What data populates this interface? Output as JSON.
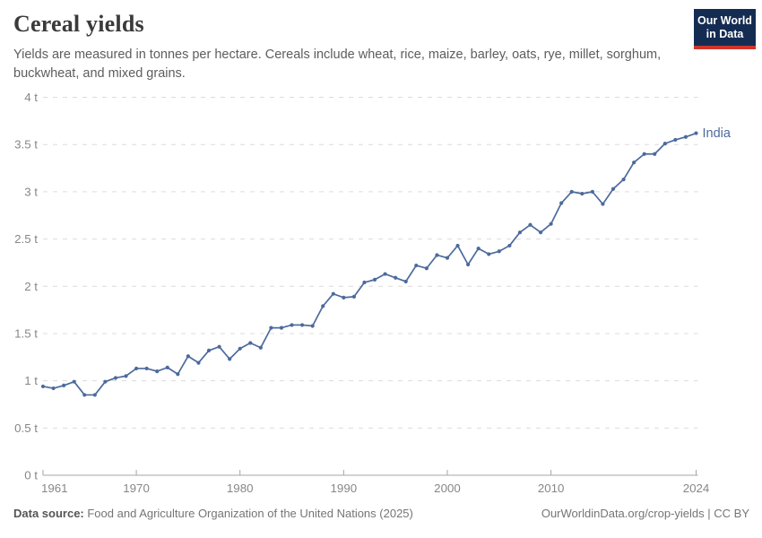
{
  "header": {
    "title": "Cereal yields",
    "subtitle": "Yields are measured in tonnes per hectare. Cereals include wheat, rice, maize, barley, oats, rye, millet, sorghum, buckwheat, and mixed grains.",
    "logo": {
      "line1": "Our World",
      "line2": "in Data"
    }
  },
  "footer": {
    "source_label": "Data source:",
    "source_text": " Food and Agriculture Organization of the United Nations (2025)",
    "attribution": "OurWorldinData.org/crop-yields | CC BY"
  },
  "colors": {
    "series_line": "#4c6a9c",
    "logo_navy": "#152c52",
    "logo_red": "#cf352b",
    "grid": "#dcdcdc",
    "axis": "#a5a5a5",
    "tick_text": "#878787",
    "title_text": "#3a3a3a"
  },
  "chart_data": {
    "type": "line",
    "title": "Cereal yields",
    "unit": "tonnes per hectare",
    "ylim": [
      0,
      4
    ],
    "grid": "horizontal dashed",
    "legend_position": "end-of-line label",
    "x": [
      1961,
      1962,
      1963,
      1964,
      1965,
      1966,
      1967,
      1968,
      1969,
      1970,
      1971,
      1972,
      1973,
      1974,
      1975,
      1976,
      1977,
      1978,
      1979,
      1980,
      1981,
      1982,
      1983,
      1984,
      1985,
      1986,
      1987,
      1988,
      1989,
      1990,
      1991,
      1992,
      1993,
      1994,
      1995,
      1996,
      1997,
      1998,
      1999,
      2000,
      2001,
      2002,
      2003,
      2004,
      2005,
      2006,
      2007,
      2008,
      2009,
      2010,
      2011,
      2012,
      2013,
      2014,
      2015,
      2016,
      2017,
      2018,
      2019,
      2020,
      2021,
      2022,
      2023,
      2024
    ],
    "series": [
      {
        "name": "India",
        "color": "#4c6a9c",
        "values": [
          0.94,
          0.92,
          0.95,
          0.99,
          0.85,
          0.85,
          0.99,
          1.03,
          1.05,
          1.13,
          1.13,
          1.1,
          1.14,
          1.07,
          1.26,
          1.19,
          1.32,
          1.36,
          1.23,
          1.34,
          1.4,
          1.35,
          1.56,
          1.56,
          1.59,
          1.59,
          1.58,
          1.79,
          1.92,
          1.88,
          1.89,
          2.04,
          2.07,
          2.13,
          2.09,
          2.05,
          2.22,
          2.19,
          2.33,
          2.3,
          2.43,
          2.23,
          2.4,
          2.34,
          2.37,
          2.43,
          2.57,
          2.65,
          2.57,
          2.66,
          2.88,
          3.0,
          2.98,
          3.0,
          2.87,
          3.03,
          3.13,
          3.31,
          3.4,
          3.4,
          3.51,
          3.55,
          3.58,
          3.62
        ]
      }
    ],
    "yticks": [
      0,
      0.5,
      1,
      1.5,
      2,
      2.5,
      3,
      3.5,
      4
    ],
    "ytick_labels": [
      "0 t",
      "0.5 t",
      "1 t",
      "1.5 t",
      "2 t",
      "2.5 t",
      "3 t",
      "3.5 t",
      "4 t"
    ],
    "xticks": [
      1961,
      1970,
      1980,
      1990,
      2000,
      2010,
      2024
    ],
    "xtick_labels": [
      "1961",
      "1970",
      "1980",
      "1990",
      "2000",
      "2010",
      "2024"
    ]
  }
}
